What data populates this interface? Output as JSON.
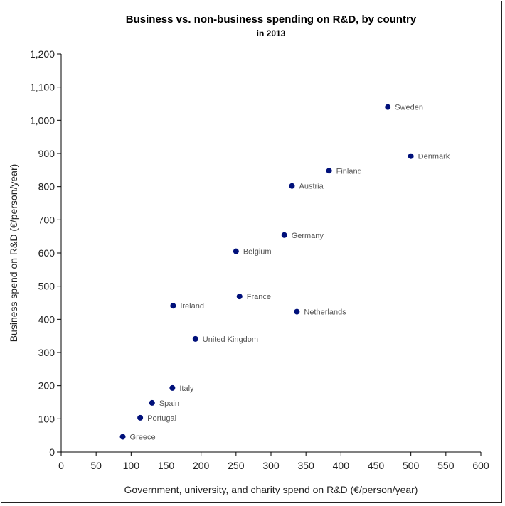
{
  "chart_data": {
    "type": "scatter",
    "title": "Business vs. non-business spending on R&D, by country",
    "subtitle": "in 2013",
    "xlabel": "Government, university, and charity spend on R&D (€/person/year)",
    "ylabel": "Business spend on R&D (€/person/year)",
    "xlim": [
      0,
      600
    ],
    "ylim": [
      0,
      1200
    ],
    "xticks": [
      0,
      50,
      100,
      150,
      200,
      250,
      300,
      350,
      400,
      450,
      500,
      550,
      600
    ],
    "yticks": [
      0,
      100,
      200,
      300,
      400,
      500,
      600,
      700,
      800,
      900,
      1000,
      1100,
      1200
    ],
    "xtick_labels": [
      "0",
      "50",
      "100",
      "150",
      "200",
      "250",
      "300",
      "350",
      "400",
      "450",
      "500",
      "550",
      "600"
    ],
    "ytick_labels": [
      "0",
      "100",
      "200",
      "300",
      "400",
      "500",
      "600",
      "700",
      "800",
      "900",
      "1,000",
      "1,100",
      "1,200"
    ],
    "grid": false,
    "point_color": "#00107a",
    "points": [
      {
        "label": "Sweden",
        "x": 467,
        "y": 1040
      },
      {
        "label": "Denmark",
        "x": 500,
        "y": 892
      },
      {
        "label": "Finland",
        "x": 383,
        "y": 848
      },
      {
        "label": "Austria",
        "x": 330,
        "y": 802
      },
      {
        "label": "Germany",
        "x": 319,
        "y": 654
      },
      {
        "label": "Belgium",
        "x": 250,
        "y": 605
      },
      {
        "label": "France",
        "x": 255,
        "y": 469
      },
      {
        "label": "Ireland",
        "x": 160,
        "y": 441
      },
      {
        "label": "Netherlands",
        "x": 337,
        "y": 423
      },
      {
        "label": "United Kingdom",
        "x": 192,
        "y": 341
      },
      {
        "label": "Italy",
        "x": 159,
        "y": 193
      },
      {
        "label": "Spain",
        "x": 130,
        "y": 148
      },
      {
        "label": "Portugal",
        "x": 113,
        "y": 103
      },
      {
        "label": "Greece",
        "x": 88,
        "y": 46
      }
    ]
  }
}
